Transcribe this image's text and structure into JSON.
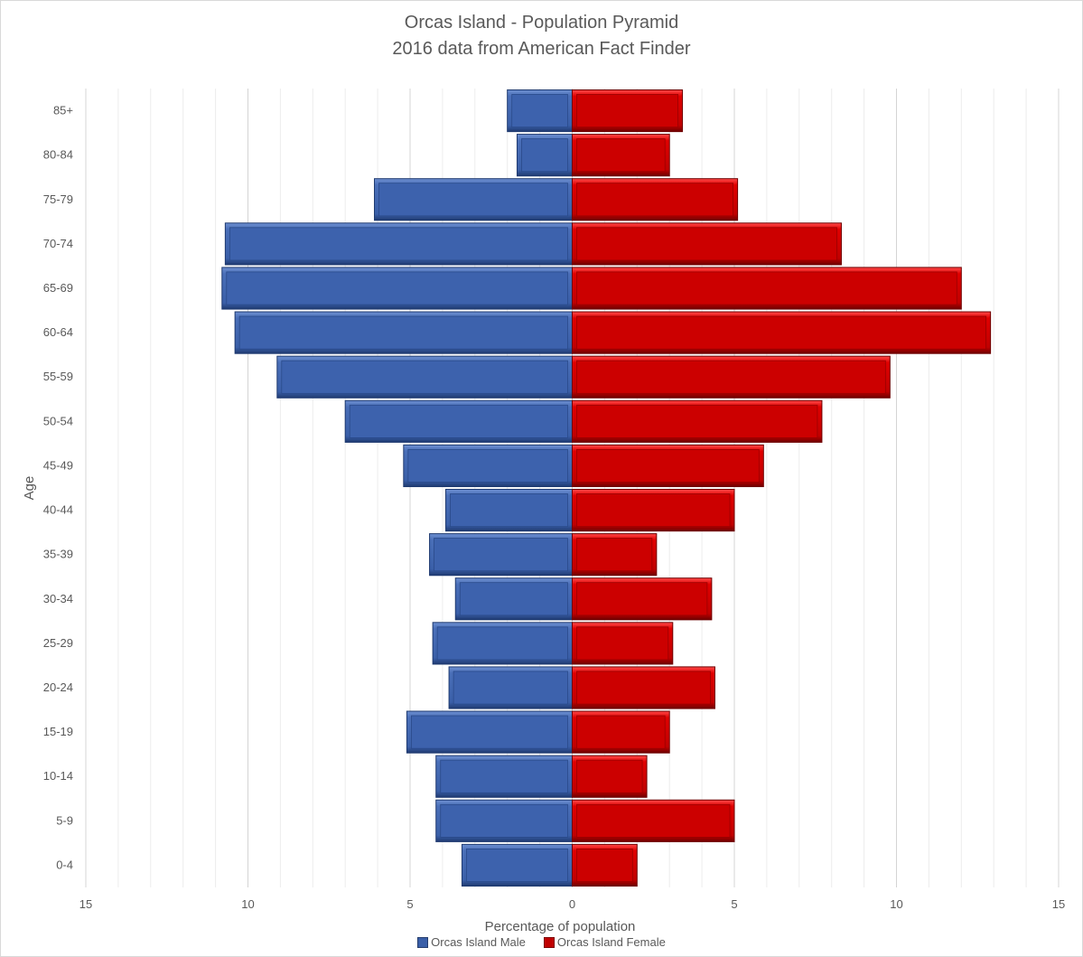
{
  "chart_data": {
    "type": "bar",
    "orientation": "horizontal",
    "title": "Orcas Island - Population Pyramid",
    "subtitle": "2016 data from American Fact Finder",
    "xlabel": "Percentage of population",
    "ylabel": "Age",
    "xlim": [
      -15,
      15
    ],
    "xticks": [
      -15,
      -10,
      -5,
      0,
      5,
      10,
      15
    ],
    "xtick_labels": [
      "15",
      "10",
      "5",
      "0",
      "5",
      "10",
      "15"
    ],
    "grid": true,
    "legend_position": "bottom",
    "categories": [
      "85+",
      "80-84",
      "75-79",
      "70-74",
      "65-69",
      "60-64",
      "55-59",
      "50-54",
      "45-49",
      "40-44",
      "35-39",
      "30-34",
      "25-29",
      "20-24",
      "15-19",
      "10-14",
      "5-9",
      "0-4"
    ],
    "series": [
      {
        "name": "Orcas Island Male",
        "color": "#3a5fa8",
        "values": [
          -2.0,
          -1.7,
          -6.1,
          -10.7,
          -10.8,
          -10.4,
          -9.1,
          -7.0,
          -5.2,
          -3.9,
          -4.4,
          -3.6,
          -4.3,
          -3.8,
          -5.1,
          -4.2,
          -4.2,
          -3.4
        ]
      },
      {
        "name": "Orcas Island Female",
        "color": "#c00000",
        "values": [
          3.4,
          3.0,
          5.1,
          8.3,
          12.0,
          12.9,
          9.8,
          7.7,
          5.9,
          5.0,
          2.6,
          4.3,
          3.1,
          4.4,
          3.0,
          2.3,
          5.0,
          2.0
        ]
      }
    ]
  }
}
